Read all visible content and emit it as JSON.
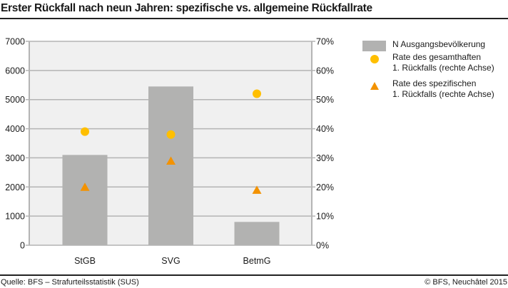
{
  "title": "Erster Rückfall nach neun Jahren: spezifische vs. allgemeine Rückfallrate",
  "footer": {
    "source": "Quelle: BFS – Strafurteilsstatistik (SUS)",
    "copyright": "© BFS, Neuchâtel 2015"
  },
  "legend": {
    "items": [
      {
        "marker": "bar-swatch",
        "lines": [
          "N Ausgangsbevölkerung"
        ]
      },
      {
        "marker": "circle",
        "lines": [
          "Rate des gesamthaften",
          "1. Rückfalls (rechte Achse)"
        ]
      },
      {
        "marker": "triangle",
        "lines": [
          "Rate des spezifischen",
          "1. Rückfalls (rechte Achse)"
        ]
      }
    ]
  },
  "colors": {
    "bar": "#B2B2B1",
    "circle": "#FFBF00",
    "triangle": "#F39200",
    "plot_background": "#F0F0F0",
    "grid": "#B4B4B4",
    "text": "#1a1a1a"
  },
  "chart_data": {
    "type": "bar",
    "title": "Erster Rückfall nach neun Jahren: spezifische vs. allgemeine Rückfallrate",
    "categories": [
      "StGB",
      "SVG",
      "BetmG"
    ],
    "series": [
      {
        "name": "N Ausgangsbevölkerung",
        "type": "bar",
        "axis": "left",
        "values": [
          3100,
          5450,
          800
        ]
      },
      {
        "name": "Rate des gesamthaften 1. Rückfalls (rechte Achse)",
        "type": "scatter",
        "marker": "circle",
        "axis": "right",
        "values": [
          39,
          38,
          52
        ]
      },
      {
        "name": "Rate des spezifischen 1. Rückfalls (rechte Achse)",
        "type": "scatter",
        "marker": "triangle",
        "axis": "right",
        "values": [
          20,
          29,
          19
        ]
      }
    ],
    "left_axis": {
      "range": [
        0,
        7000
      ],
      "ticks": [
        "0",
        "1000",
        "2000",
        "3000",
        "4000",
        "5000",
        "6000",
        "7000"
      ]
    },
    "right_axis": {
      "range": [
        0,
        70
      ],
      "unit": "%",
      "ticks": [
        "0%",
        "10%",
        "20%",
        "30%",
        "40%",
        "50%",
        "60%",
        "70%"
      ]
    },
    "xlabel": "",
    "ylabel": "",
    "grid": true,
    "legend_position": "right"
  }
}
